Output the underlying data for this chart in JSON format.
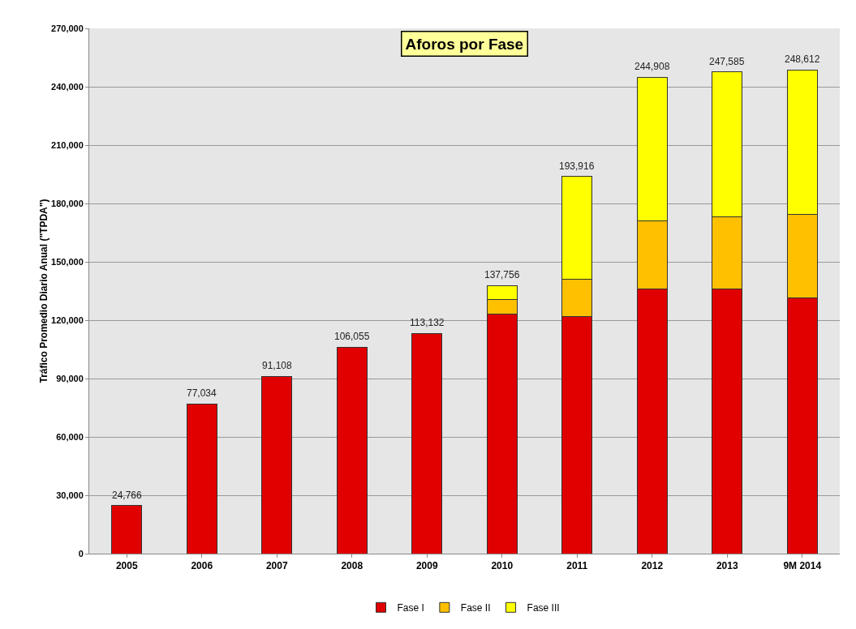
{
  "chart_data": {
    "type": "bar",
    "title": "Aforos por Fase",
    "ylabel": "Tráfico Promedio Diario Anual (\"TPDA\")",
    "categories": [
      "2005",
      "2006",
      "2007",
      "2008",
      "2009",
      "2010",
      "2011",
      "2012",
      "2013",
      "9M 2014"
    ],
    "stacked": true,
    "series": [
      {
        "name": "Fase I",
        "color": "#e00000",
        "values": [
          24766,
          77034,
          91108,
          106055,
          113132,
          123000,
          122000,
          136000,
          136000,
          131500
        ]
      },
      {
        "name": "Fase II",
        "color": "#ffc000",
        "values": [
          null,
          null,
          null,
          null,
          null,
          7500,
          19000,
          35000,
          37000,
          43000
        ]
      },
      {
        "name": "Fase III",
        "color": "#ffff00",
        "values": [
          null,
          null,
          null,
          null,
          null,
          7256,
          52916,
          73908,
          74585,
          74112
        ]
      }
    ],
    "totals": [
      "24,766",
      "77,034",
      "91,108",
      "106,055",
      "113,132",
      "137,756",
      "193,916",
      "244,908",
      "247,585",
      "248,612"
    ],
    "ylim": [
      0,
      270000
    ],
    "yticks": [
      {
        "value": 0,
        "label": "0"
      },
      {
        "value": 30000,
        "label": "30,000"
      },
      {
        "value": 60000,
        "label": "60,000"
      },
      {
        "value": 90000,
        "label": "90,000"
      },
      {
        "value": 120000,
        "label": "120,000"
      },
      {
        "value": 150000,
        "label": "150,000"
      },
      {
        "value": 180000,
        "label": "180,000"
      },
      {
        "value": 210000,
        "label": "210,000"
      },
      {
        "value": 240000,
        "label": "240,000"
      },
      {
        "value": 270000,
        "label": "270,000"
      }
    ],
    "grid": "y",
    "legend": "bottom"
  }
}
